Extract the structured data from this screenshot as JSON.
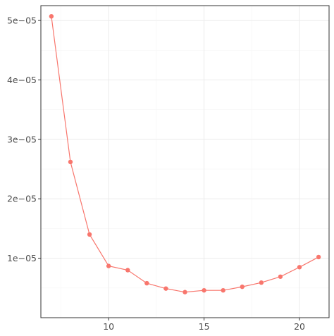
{
  "chart_data": {
    "type": "line",
    "title": "",
    "xlabel": "",
    "ylabel": "",
    "xlim": [
      6.45,
      21.55
    ],
    "ylim": [
      0.0,
      5.25e-05
    ],
    "x_ticks": [
      {
        "value": 10,
        "label": "10"
      },
      {
        "value": 15,
        "label": "15"
      },
      {
        "value": 20,
        "label": "20"
      }
    ],
    "x_minor_ticks": [
      7.5,
      12.5,
      17.5
    ],
    "y_ticks": [
      {
        "value": 1e-05,
        "label": "1e−05"
      },
      {
        "value": 2e-05,
        "label": "2e−05"
      },
      {
        "value": 3e-05,
        "label": "3e−05"
      },
      {
        "value": 4e-05,
        "label": "4e−05"
      },
      {
        "value": 5e-05,
        "label": "5e−05"
      }
    ],
    "y_minor_ticks": [
      5e-06,
      1.5e-05,
      2.5e-05,
      3.5e-05,
      4.5e-05
    ],
    "grid": true,
    "series": [
      {
        "color": "#F8766D",
        "x": [
          7,
          8,
          9,
          10,
          11,
          12,
          13,
          14,
          15,
          16,
          17,
          18,
          19,
          20,
          21
        ],
        "y": [
          5.07e-05,
          2.62e-05,
          1.4e-05,
          8.7e-06,
          8e-06,
          5.8e-06,
          4.9e-06,
          4.3e-06,
          4.6e-06,
          4.6e-06,
          5.2e-06,
          5.9e-06,
          6.9e-06,
          8.5e-06,
          1.02e-05
        ]
      }
    ]
  }
}
